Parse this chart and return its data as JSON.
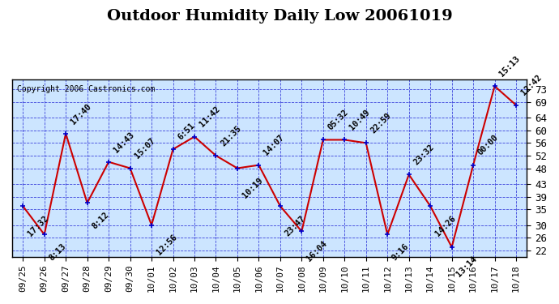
{
  "title": "Outdoor Humidity Daily Low 20061019",
  "copyright": "Copyright 2006 Castronics.com",
  "dates": [
    "09/25",
    "09/26",
    "09/27",
    "09/28",
    "09/29",
    "09/30",
    "10/01",
    "10/02",
    "10/03",
    "10/04",
    "10/05",
    "10/06",
    "10/07",
    "10/08",
    "10/09",
    "10/10",
    "10/11",
    "10/12",
    "10/13",
    "10/14",
    "10/15",
    "10/16",
    "10/17",
    "10/18"
  ],
  "values": [
    36,
    27,
    59,
    37,
    50,
    48,
    30,
    54,
    58,
    52,
    48,
    49,
    36,
    28,
    57,
    57,
    56,
    27,
    46,
    36,
    23,
    49,
    74,
    68
  ],
  "annotations": [
    {
      "idx": 0,
      "label": "17:32",
      "va": "top"
    },
    {
      "idx": 1,
      "label": "8:13",
      "va": "top"
    },
    {
      "idx": 2,
      "label": "17:40",
      "va": "bottom"
    },
    {
      "idx": 3,
      "label": "8:12",
      "va": "top"
    },
    {
      "idx": 4,
      "label": "14:43",
      "va": "bottom"
    },
    {
      "idx": 5,
      "label": "15:07",
      "va": "bottom"
    },
    {
      "idx": 6,
      "label": "12:56",
      "va": "top"
    },
    {
      "idx": 7,
      "label": "6:51",
      "va": "bottom"
    },
    {
      "idx": 8,
      "label": "11:42",
      "va": "bottom"
    },
    {
      "idx": 9,
      "label": "21:35",
      "va": "bottom"
    },
    {
      "idx": 10,
      "label": "10:19",
      "va": "top"
    },
    {
      "idx": 11,
      "label": "14:07",
      "va": "bottom"
    },
    {
      "idx": 12,
      "label": "23:47",
      "va": "top"
    },
    {
      "idx": 13,
      "label": "16:04",
      "va": "top"
    },
    {
      "idx": 14,
      "label": "05:32",
      "va": "bottom"
    },
    {
      "idx": 15,
      "label": "10:49",
      "va": "bottom"
    },
    {
      "idx": 16,
      "label": "22:59",
      "va": "bottom"
    },
    {
      "idx": 17,
      "label": "9:16",
      "va": "top"
    },
    {
      "idx": 18,
      "label": "23:32",
      "va": "bottom"
    },
    {
      "idx": 19,
      "label": "14:26",
      "va": "top"
    },
    {
      "idx": 20,
      "label": "13:14",
      "va": "top"
    },
    {
      "idx": 21,
      "label": "00:00",
      "va": "bottom"
    },
    {
      "idx": 22,
      "label": "15:13",
      "va": "bottom"
    },
    {
      "idx": 23,
      "label": "12:42",
      "va": "bottom"
    }
  ],
  "yticks": [
    22,
    26,
    30,
    35,
    39,
    43,
    48,
    52,
    56,
    60,
    64,
    69,
    73
  ],
  "ylim": [
    20,
    76
  ],
  "line_color": "#cc0000",
  "marker_color": "#0000cc",
  "grid_color": "#0000cc",
  "bg_color": "#cce5ff",
  "border_color": "#000000",
  "annotation_color": "#000000",
  "title_fontsize": 14,
  "annotation_fontsize": 7.5,
  "xlabel_fontsize": 8,
  "ylabel_fontsize": 9
}
